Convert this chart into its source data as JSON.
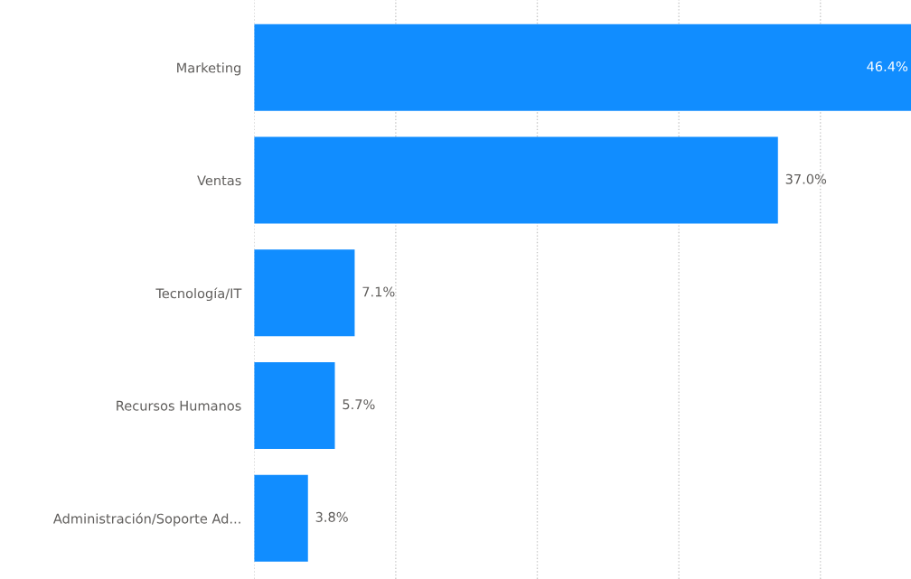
{
  "chart_data": {
    "type": "bar",
    "orientation": "horizontal",
    "categories": [
      "Marketing",
      "Ventas",
      "Tecnología/IT",
      "Recursos Humanos",
      "Administración/Soporte Ad..."
    ],
    "values": [
      46.4,
      37.0,
      7.1,
      5.7,
      3.8
    ],
    "value_labels": [
      "46.4%",
      "37.0%",
      "7.1%",
      "5.7%",
      "3.8%"
    ],
    "color": "#118dff",
    "xlim": [
      0,
      46.4
    ],
    "xticks": [
      {
        "value": 0,
        "label": null
      },
      {
        "value": 10,
        "label": null
      },
      {
        "value": 20,
        "label": null
      },
      {
        "value": 30,
        "label": null
      },
      {
        "value": 40,
        "label": null
      }
    ],
    "grid": "x",
    "tick_labels": "y",
    "legend": false
  }
}
